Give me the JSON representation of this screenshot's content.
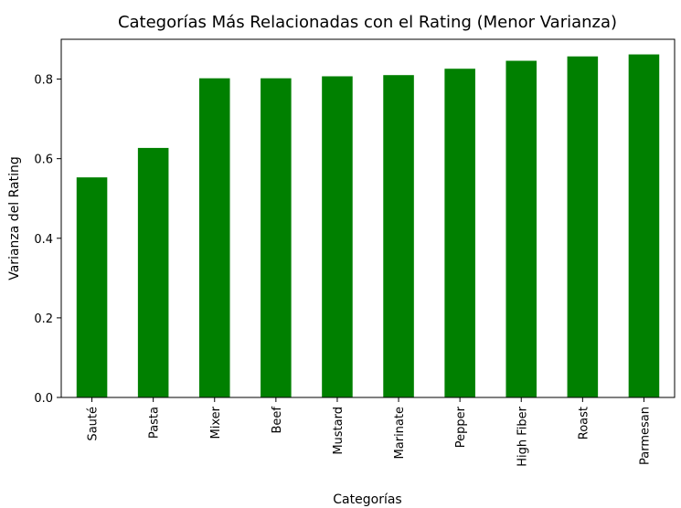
{
  "chart_data": {
    "type": "bar",
    "title": "Categorías Más Relacionadas con el Rating (Menor Varianza)",
    "xlabel": "Categorías",
    "ylabel": "Varianza del Rating",
    "categories": [
      "Sauté",
      "Pasta",
      "Mixer",
      "Beef",
      "Mustard",
      "Marinate",
      "Pepper",
      "High Fiber",
      "Roast",
      "Parmesan"
    ],
    "values": [
      0.553,
      0.627,
      0.802,
      0.802,
      0.807,
      0.81,
      0.826,
      0.846,
      0.857,
      0.862
    ],
    "ylim": [
      0,
      0.9
    ],
    "yticks": [
      "0.0",
      "0.2",
      "0.4",
      "0.6",
      "0.8"
    ],
    "bar_color": "#008000",
    "grid": false,
    "legend": "none"
  }
}
